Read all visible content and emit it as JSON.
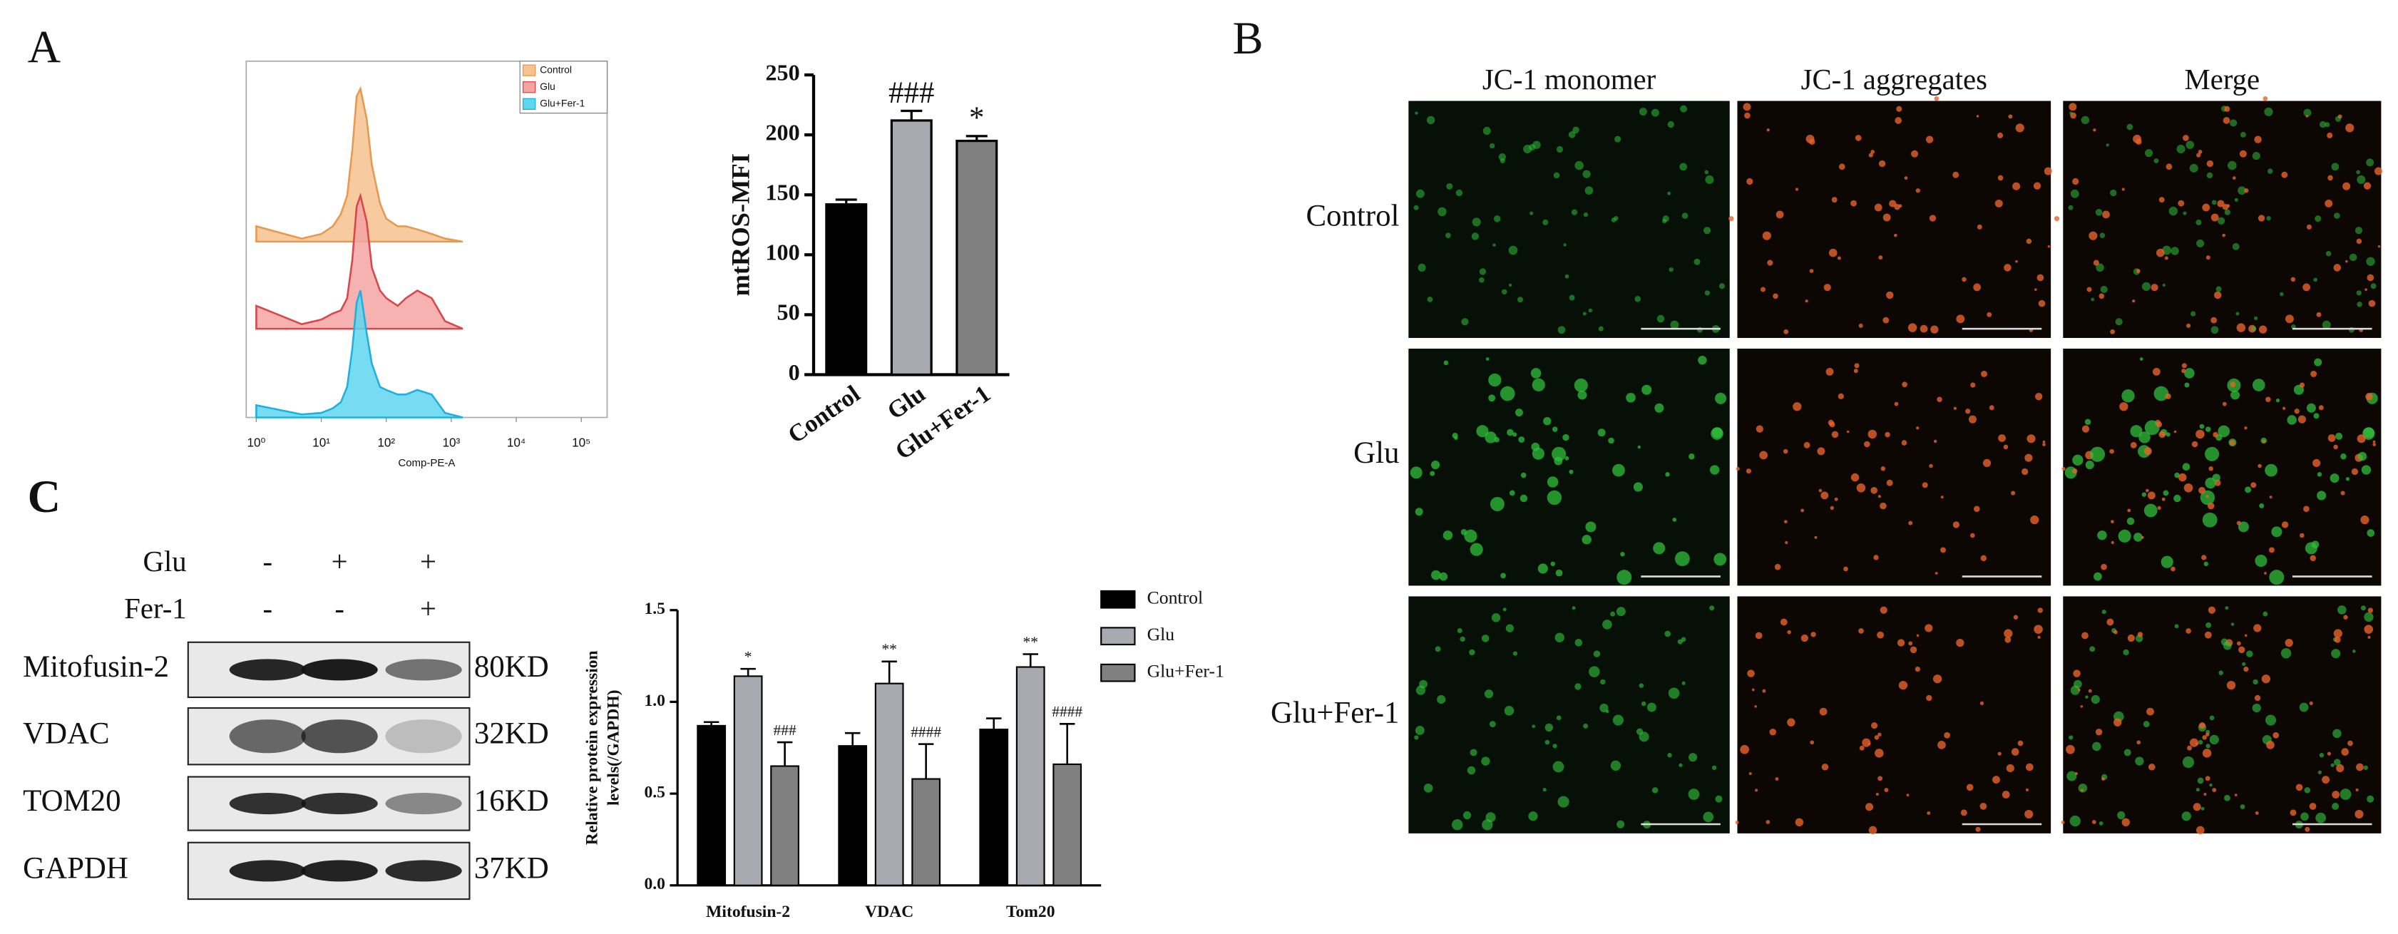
{
  "panels": {
    "a": "A",
    "b": "B",
    "c": "C"
  },
  "chart_data": [
    {
      "type": "area",
      "xscale": "log",
      "xlabel": "Comp-PE-A",
      "x": [
        1,
        5,
        10,
        15,
        20,
        25,
        30,
        35,
        40,
        50,
        60,
        80,
        100,
        150,
        200,
        300,
        500,
        800,
        1500
      ],
      "xlim": [
        0.7,
        250000
      ],
      "xticks": [
        {
          "value": 1,
          "label": "10⁰"
        },
        {
          "value": 10,
          "label": "10¹"
        },
        {
          "value": 100,
          "label": "10²"
        },
        {
          "value": 1000,
          "label": "10³"
        },
        {
          "value": 10000,
          "label": "10⁴"
        },
        {
          "value": 100000,
          "label": "10⁵"
        }
      ],
      "ylim": [
        0,
        100
      ],
      "legend": "upper right",
      "series": [
        {
          "name": "Control",
          "color": "#f6c28e",
          "edge_color": "#e59a4e",
          "values": [
            10,
            2,
            5,
            10,
            18,
            30,
            60,
            95,
            100,
            80,
            50,
            25,
            15,
            10,
            10,
            8,
            5,
            2,
            0
          ]
        },
        {
          "name": "Glu",
          "color": "#f5a3a3",
          "edge_color": "#d8474a",
          "values": [
            15,
            3,
            6,
            10,
            12,
            20,
            45,
            80,
            87,
            70,
            40,
            25,
            20,
            15,
            20,
            25,
            20,
            5,
            0
          ]
        },
        {
          "name": "Glu+Fer-1",
          "color": "#5fd6f0",
          "edge_color": "#1fb0dc",
          "values": [
            8,
            2,
            3,
            6,
            10,
            20,
            45,
            75,
            83,
            55,
            35,
            20,
            18,
            15,
            15,
            18,
            15,
            3,
            0
          ]
        }
      ]
    },
    {
      "type": "bar",
      "ylabel": "mtROS-MFI",
      "categories": [
        "Control",
        "Glu",
        "Glu+Fer-1"
      ],
      "values": [
        142,
        212,
        195
      ],
      "errors": [
        4,
        8,
        4
      ],
      "colors": [
        "#000000",
        "#a9a9b1",
        "#808080"
      ],
      "annotations": [
        null,
        "###",
        "*"
      ],
      "ylim": [
        0,
        250
      ],
      "yticks": [
        0,
        50,
        100,
        150,
        200,
        250
      ]
    },
    {
      "type": "grouped-bar",
      "ylabel": [
        "Relative protein expression",
        "levels(/GAPDH)"
      ],
      "categories": [
        "Mitofusin-2",
        "VDAC",
        "Tom20"
      ],
      "legend": "right",
      "ylim": [
        0,
        1.5
      ],
      "yticks": [
        {
          "value": 0,
          "label": "0.0"
        },
        0.5,
        {
          "value": 1,
          "label": "1.0"
        },
        1.5
      ],
      "series": [
        {
          "name": "Control",
          "color": "#000000",
          "values": [
            0.87,
            0.76,
            0.85
          ],
          "errors": [
            0.02,
            0.07,
            0.06
          ],
          "annotations": [
            null,
            null,
            null
          ]
        },
        {
          "name": "Glu",
          "color": "#a9a9b1",
          "values": [
            1.14,
            1.1,
            1.19
          ],
          "errors": [
            0.04,
            0.12,
            0.07
          ],
          "annotations": [
            "*",
            "**",
            "**"
          ]
        },
        {
          "name": "Glu+Fer-1",
          "color": "#808080",
          "values": [
            0.65,
            0.58,
            0.66
          ],
          "errors": [
            0.13,
            0.19,
            0.22
          ],
          "annotations": [
            "###",
            "####",
            "####"
          ]
        }
      ]
    }
  ],
  "micrographs": {
    "columns": [
      "JC-1 monomer",
      "JC-1 aggregates",
      "Merge"
    ],
    "rows": [
      "Control",
      "Glu",
      "Glu+Fer-1"
    ]
  },
  "blot": {
    "conditions": [
      {
        "name": "Glu",
        "marks": [
          "-",
          "+",
          "+"
        ]
      },
      {
        "name": "Fer-1",
        "marks": [
          "-",
          "-",
          "+"
        ]
      }
    ],
    "proteins": [
      {
        "name": "Mitofusin-2",
        "size": "80KD"
      },
      {
        "name": "VDAC",
        "size": "32KD"
      },
      {
        "name": "TOM20",
        "size": "16KD"
      },
      {
        "name": "GAPDH",
        "size": "37KD"
      }
    ]
  }
}
